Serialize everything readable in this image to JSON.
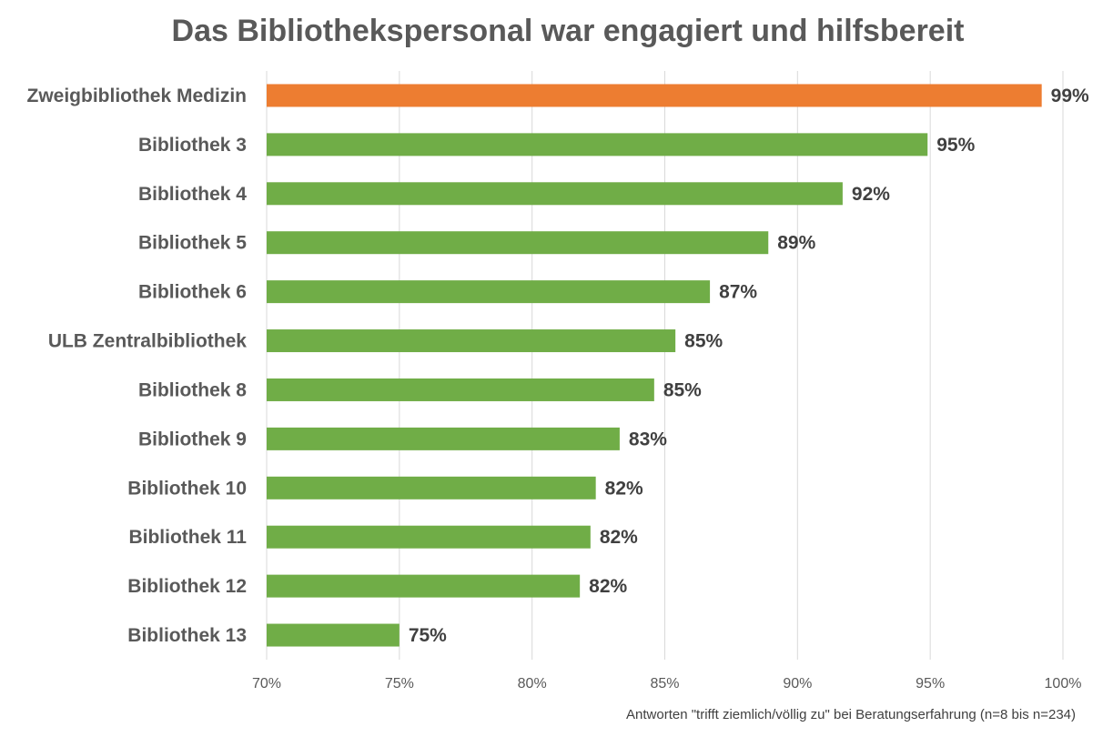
{
  "chart_data": {
    "type": "bar",
    "orientation": "horizontal",
    "title": "Das Bibliothekspersonal war engagiert und hilfsbereit",
    "categories": [
      "Zweigbibliothek Medizin",
      "Bibliothek 3",
      "Bibliothek 4",
      "Bibliothek 5",
      "Bibliothek 6",
      "ULB Zentralbibliothek",
      "Bibliothek 8",
      "Bibliothek 9",
      "Bibliothek 10",
      "Bibliothek 11",
      "Bibliothek 12",
      "Bibliothek 13"
    ],
    "values": [
      99.2,
      94.9,
      91.7,
      88.9,
      86.7,
      85.4,
      84.6,
      83.3,
      82.4,
      82.2,
      81.8,
      75.0
    ],
    "value_labels": [
      "99%",
      "95%",
      "92%",
      "89%",
      "87%",
      "85%",
      "85%",
      "83%",
      "82%",
      "82%",
      "82%",
      "75%"
    ],
    "xlim": [
      70,
      100
    ],
    "x_ticks": [
      70,
      75,
      80,
      85,
      90,
      95,
      100
    ],
    "x_tick_labels": [
      "70%",
      "75%",
      "80%",
      "85%",
      "90%",
      "95%",
      "100%"
    ],
    "grid": "vertical",
    "legend": "none",
    "footnote": "Antworten \"trifft ziemlich/völlig zu\" bei Beratungserfahrung (n=8 bis n=234)",
    "colors": {
      "highlight": "#ED7D31",
      "default": "#70AD47"
    },
    "highlight_index": 0
  }
}
